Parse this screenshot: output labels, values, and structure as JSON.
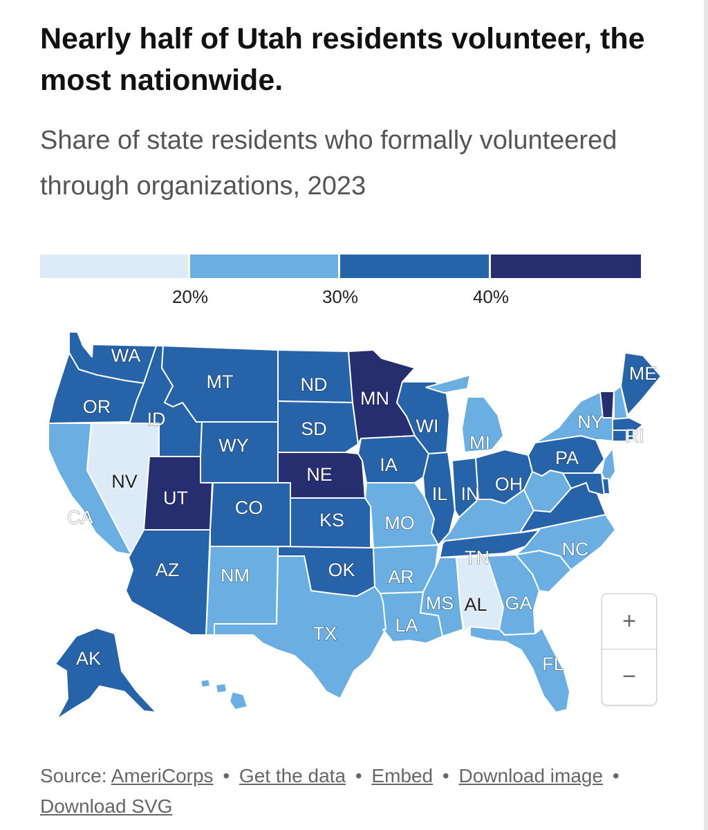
{
  "title": "Nearly half of Utah residents volunteer, the most nationwide.",
  "subtitle": "Share of state residents who formally volunteered through organizations, 2023",
  "legend": {
    "bins": [
      {
        "label": "under 20%",
        "color": "#ddeaf8"
      },
      {
        "label": "20–30%",
        "color": "#6aaee2"
      },
      {
        "label": "30–40%",
        "color": "#2763a8"
      },
      {
        "label": "40% and above",
        "color": "#262e70"
      }
    ],
    "ticks": [
      "20%",
      "30%",
      "40%"
    ],
    "tick_values": [
      20,
      30,
      40
    ]
  },
  "states": [
    {
      "code": "WA",
      "bin": 2
    },
    {
      "code": "OR",
      "bin": 2
    },
    {
      "code": "CA",
      "bin": 1
    },
    {
      "code": "ID",
      "bin": 2
    },
    {
      "code": "NV",
      "bin": 0
    },
    {
      "code": "UT",
      "bin": 3
    },
    {
      "code": "AZ",
      "bin": 2
    },
    {
      "code": "MT",
      "bin": 2
    },
    {
      "code": "WY",
      "bin": 2
    },
    {
      "code": "CO",
      "bin": 2
    },
    {
      "code": "NM",
      "bin": 1
    },
    {
      "code": "ND",
      "bin": 2
    },
    {
      "code": "SD",
      "bin": 2
    },
    {
      "code": "NE",
      "bin": 3
    },
    {
      "code": "KS",
      "bin": 2
    },
    {
      "code": "OK",
      "bin": 2
    },
    {
      "code": "TX",
      "bin": 1
    },
    {
      "code": "MN",
      "bin": 3
    },
    {
      "code": "IA",
      "bin": 2
    },
    {
      "code": "MO",
      "bin": 1
    },
    {
      "code": "AR",
      "bin": 1
    },
    {
      "code": "LA",
      "bin": 1
    },
    {
      "code": "WI",
      "bin": 2
    },
    {
      "code": "IL",
      "bin": 2
    },
    {
      "code": "MI",
      "bin": 1
    },
    {
      "code": "IN",
      "bin": 2
    },
    {
      "code": "OH",
      "bin": 2
    },
    {
      "code": "KY",
      "bin": 1
    },
    {
      "code": "TN",
      "bin": 2
    },
    {
      "code": "MS",
      "bin": 1
    },
    {
      "code": "AL",
      "bin": 0
    },
    {
      "code": "GA",
      "bin": 1
    },
    {
      "code": "FL",
      "bin": 1
    },
    {
      "code": "SC",
      "bin": 1
    },
    {
      "code": "NC",
      "bin": 1
    },
    {
      "code": "VA",
      "bin": 2
    },
    {
      "code": "WV",
      "bin": 1
    },
    {
      "code": "PA",
      "bin": 2
    },
    {
      "code": "NY",
      "bin": 1
    },
    {
      "code": "VT",
      "bin": 3
    },
    {
      "code": "NH",
      "bin": 1
    },
    {
      "code": "ME",
      "bin": 2
    },
    {
      "code": "MA",
      "bin": 2
    },
    {
      "code": "RI",
      "bin": 2
    },
    {
      "code": "CT",
      "bin": 2
    },
    {
      "code": "NJ",
      "bin": 1
    },
    {
      "code": "DE",
      "bin": 2
    },
    {
      "code": "MD",
      "bin": 2
    },
    {
      "code": "AK",
      "bin": 2
    },
    {
      "code": "HI",
      "bin": 1
    }
  ],
  "zoom": {
    "in_label": "+",
    "out_label": "−"
  },
  "footer": {
    "source_prefix": "Source:",
    "source_link": "AmeriCorps",
    "links": [
      "Get the data",
      "Embed",
      "Download image",
      "Download SVG"
    ],
    "separator": "•"
  }
}
